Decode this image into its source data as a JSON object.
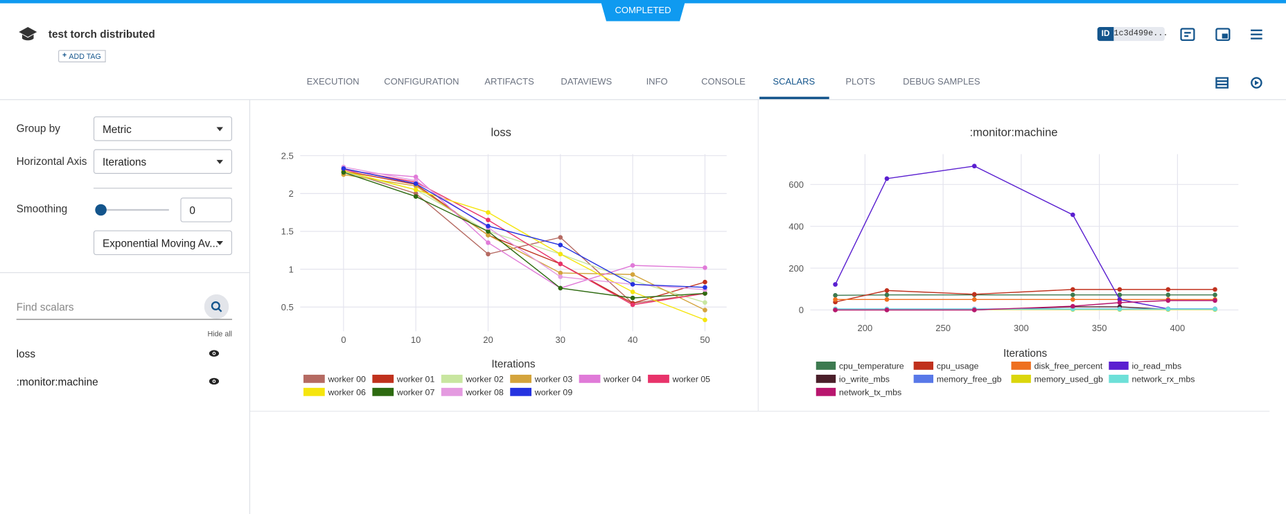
{
  "header": {
    "status": "COMPLETED",
    "title": "test torch distributed",
    "add_tag": "ADD TAG",
    "id_label": "ID",
    "id_value": "1c3d499e..."
  },
  "tabs": [
    {
      "label": "EXECUTION"
    },
    {
      "label": "CONFIGURATION"
    },
    {
      "label": "ARTIFACTS"
    },
    {
      "label": "DATAVIEWS"
    },
    {
      "label": "INFO"
    },
    {
      "label": "CONSOLE"
    },
    {
      "label": "SCALARS",
      "active": true
    },
    {
      "label": "PLOTS"
    },
    {
      "label": "DEBUG SAMPLES"
    }
  ],
  "sidebar": {
    "group_by_label": "Group by",
    "group_by_value": "Metric",
    "horizontal_axis_label": "Horizontal Axis",
    "horizontal_axis_value": "Iterations",
    "smoothing_label": "Smoothing",
    "smoothing_value": 0,
    "smoothing_method": "Exponential Moving Av...",
    "search_placeholder": "Find scalars",
    "hide_all": "Hide all",
    "scalars": [
      "loss",
      ":monitor:machine"
    ]
  },
  "chart_data": [
    {
      "type": "line",
      "title": "loss",
      "x_label": "Iterations",
      "grid": true,
      "markers": true,
      "x": [
        0,
        10,
        20,
        30,
        40,
        50
      ],
      "xlim": [
        -6,
        53
      ],
      "xticks": [
        0,
        10,
        20,
        30,
        40,
        50
      ],
      "ylim": [
        0.18,
        2.52
      ],
      "yticks": [
        0.5,
        1,
        1.5,
        2,
        2.5
      ],
      "series": [
        {
          "name": "worker 00",
          "color": "#b56a62",
          "values": [
            2.3,
            2.0,
            1.2,
            1.42,
            0.55,
            0.68
          ]
        },
        {
          "name": "worker 01",
          "color": "#c0311d",
          "values": [
            2.3,
            2.12,
            1.45,
            1.07,
            0.55,
            0.83
          ]
        },
        {
          "name": "worker 02",
          "color": "#c8e6a0",
          "values": [
            2.28,
            2.05,
            1.5,
            1.2,
            0.85,
            0.56
          ]
        },
        {
          "name": "worker 03",
          "color": "#d4a43c",
          "values": [
            2.25,
            2.1,
            1.45,
            0.95,
            0.93,
            0.46
          ]
        },
        {
          "name": "worker 04",
          "color": "#e07ad8",
          "values": [
            2.3,
            2.22,
            1.35,
            0.75,
            1.05,
            1.02
          ]
        },
        {
          "name": "worker 05",
          "color": "#e8336a",
          "values": [
            2.32,
            2.15,
            1.65,
            1.07,
            0.53,
            0.68
          ]
        },
        {
          "name": "worker 06",
          "color": "#f5e50e",
          "values": [
            2.3,
            2.05,
            1.75,
            1.2,
            0.7,
            0.33
          ]
        },
        {
          "name": "worker 07",
          "color": "#2d6a10",
          "values": [
            2.28,
            1.96,
            1.5,
            0.75,
            0.62,
            0.68
          ]
        },
        {
          "name": "worker 08",
          "color": "#e49ae0",
          "values": [
            2.35,
            2.17,
            1.55,
            0.9,
            0.8,
            0.73
          ]
        },
        {
          "name": "worker 09",
          "color": "#2533e0",
          "values": [
            2.33,
            2.13,
            1.57,
            1.32,
            0.8,
            0.76
          ]
        }
      ]
    },
    {
      "type": "line",
      "title": ":monitor:machine",
      "x_label": "Iterations",
      "grid": true,
      "markers": true,
      "x": [
        181,
        214,
        270,
        333,
        363,
        394,
        424
      ],
      "xlim": [
        165,
        439
      ],
      "xticks": [
        200,
        250,
        300,
        350,
        400
      ],
      "ylim": [
        -47,
        745
      ],
      "yticks": [
        0,
        200,
        400,
        600
      ],
      "series": [
        {
          "name": "cpu_temperature",
          "color": "#3d7a50",
          "values": [
            70,
            72,
            72,
            72,
            72,
            72,
            72
          ]
        },
        {
          "name": "cpu_usage",
          "color": "#c0311d",
          "values": [
            38,
            93,
            75,
            98,
            98,
            98,
            98
          ]
        },
        {
          "name": "disk_free_percent",
          "color": "#ee7020",
          "values": [
            50,
            50,
            50,
            50,
            50,
            50,
            50
          ]
        },
        {
          "name": "io_read_mbs",
          "color": "#5a1fd0",
          "values": [
            122,
            628,
            688,
            455,
            50,
            5,
            5
          ]
        },
        {
          "name": "io_write_mbs",
          "color": "#4a1f2a",
          "values": [
            0,
            0,
            0,
            15,
            15,
            3,
            3
          ]
        },
        {
          "name": "memory_free_gb",
          "color": "#5878e8",
          "values": [
            5,
            5,
            5,
            5,
            5,
            5,
            5
          ]
        },
        {
          "name": "memory_used_gb",
          "color": "#dbd60c",
          "values": [
            2,
            2,
            2,
            2,
            2,
            2,
            2
          ]
        },
        {
          "name": "network_rx_mbs",
          "color": "#6de0d8",
          "values": [
            4,
            4,
            4,
            4,
            4,
            4,
            4
          ]
        },
        {
          "name": "network_tx_mbs",
          "color": "#b8166e",
          "values": [
            0,
            0,
            0,
            18,
            35,
            45,
            45
          ]
        }
      ]
    }
  ]
}
